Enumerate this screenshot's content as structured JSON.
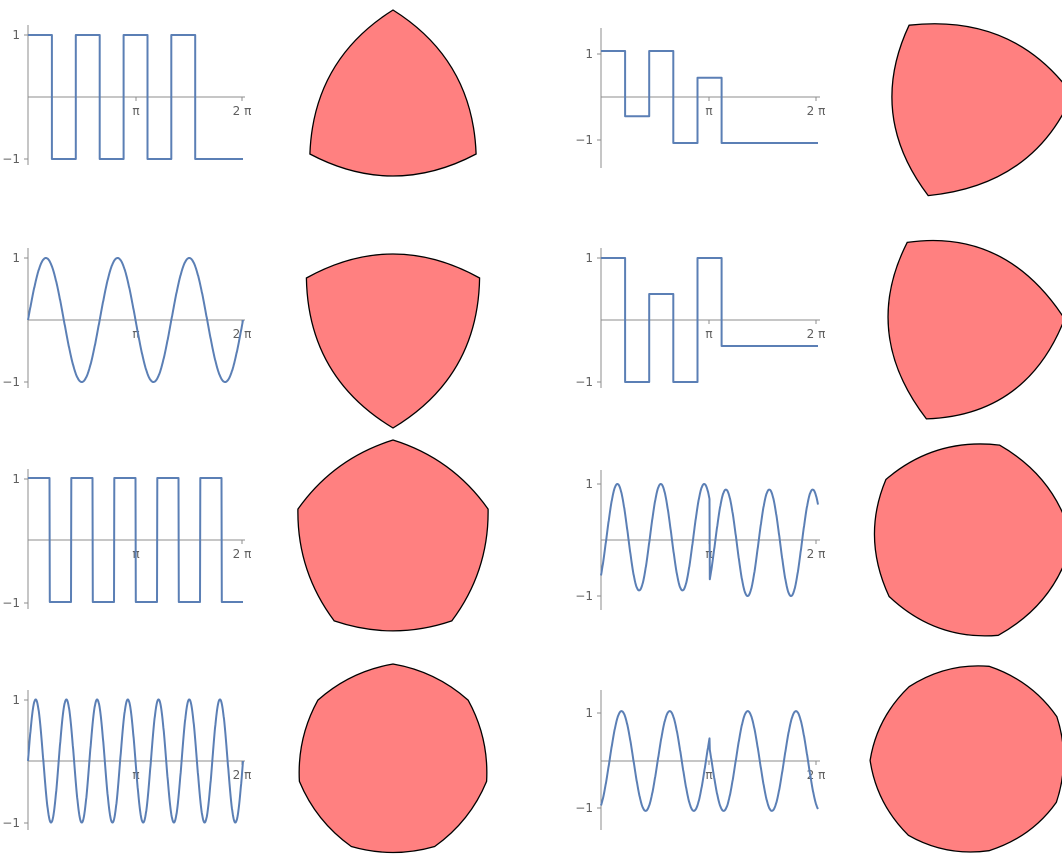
{
  "colors": {
    "curve": "#5b7fb5",
    "shape_fill": "#ff8080",
    "shape_stroke": "#000000",
    "axis": "#8c8c8c"
  },
  "tick_labels": {
    "y_top": "1",
    "y_bottom": "−1",
    "x_pi": "π",
    "x_two_pi": "2 π"
  },
  "panels": [
    {
      "id": "left-1",
      "function": "square wave, 3 cycles",
      "x_range": [
        0,
        6.283
      ],
      "y_range": [
        -1,
        1
      ],
      "points": [
        [
          0,
          1
        ],
        [
          0.698,
          1
        ],
        [
          0.698,
          -1
        ],
        [
          1.396,
          -1
        ],
        [
          1.396,
          1
        ],
        [
          2.094,
          1
        ],
        [
          2.094,
          -1
        ],
        [
          2.793,
          -1
        ],
        [
          2.793,
          1
        ],
        [
          3.491,
          1
        ],
        [
          3.491,
          -1
        ],
        [
          4.189,
          -1
        ],
        [
          4.189,
          1
        ],
        [
          4.887,
          1
        ],
        [
          4.887,
          -1
        ],
        [
          5.585,
          -1
        ]
      ],
      "shape": "rounded triangle, curved edges, sharp corners"
    },
    {
      "id": "right-1",
      "function": "piecewise constant steps",
      "x_range": [
        0,
        6.283
      ],
      "y_range": [
        -1.2,
        1.2
      ],
      "points": [
        [
          0,
          1.07
        ],
        [
          0.698,
          1.07
        ],
        [
          0.698,
          -0.45
        ],
        [
          1.396,
          -0.45
        ],
        [
          1.396,
          1.07
        ],
        [
          2.094,
          1.07
        ],
        [
          2.094,
          -1.07
        ],
        [
          2.793,
          -1.07
        ],
        [
          2.793,
          0.45
        ],
        [
          3.491,
          0.45
        ],
        [
          3.491,
          -1.07
        ],
        [
          4.189,
          -1.07
        ]
      ],
      "shape": "rounded asymmetric triangle"
    },
    {
      "id": "left-2",
      "function": "sine wave, 3 cycles",
      "x_range": [
        0,
        6.283
      ],
      "y_range": [
        -1,
        1
      ],
      "points": [],
      "shape": "rounded triangle with convex edges"
    },
    {
      "id": "right-2",
      "function": "piecewise constant steps",
      "x_range": [
        0,
        6.283
      ],
      "y_range": [
        -1,
        1
      ],
      "points": [
        [
          0,
          1
        ],
        [
          0.698,
          1
        ],
        [
          0.698,
          -1
        ],
        [
          1.396,
          -1
        ],
        [
          1.396,
          0.42
        ],
        [
          2.094,
          0.42
        ],
        [
          2.094,
          -1
        ],
        [
          2.793,
          -1
        ],
        [
          2.793,
          1
        ],
        [
          3.491,
          1
        ],
        [
          3.491,
          -0.42
        ],
        [
          4.189,
          -0.42
        ]
      ],
      "shape": "rounded asymmetric triangle"
    },
    {
      "id": "left-3",
      "function": "square wave, 5 cycles",
      "x_range": [
        0,
        6.283
      ],
      "y_range": [
        -1,
        1
      ],
      "points": [],
      "shape": "rounded pentagon"
    },
    {
      "id": "right-3",
      "function": "sinusoid with jump at pi",
      "x_range": [
        0,
        6.283
      ],
      "y_range": [
        -1.2,
        1.2
      ],
      "points": [],
      "shape": "rounded pentagon, asymmetric"
    },
    {
      "id": "left-4",
      "function": "sine wave, 7 cycles",
      "x_range": [
        0,
        6.283
      ],
      "y_range": [
        -1,
        1
      ],
      "points": [],
      "shape": "rounded heptagon"
    },
    {
      "id": "right-4",
      "function": "sinusoid with jump at pi",
      "x_range": [
        0,
        6.283
      ],
      "y_range": [
        -1.3,
        1.3
      ],
      "points": [],
      "shape": "rounded heptagon, asymmetric"
    }
  ]
}
